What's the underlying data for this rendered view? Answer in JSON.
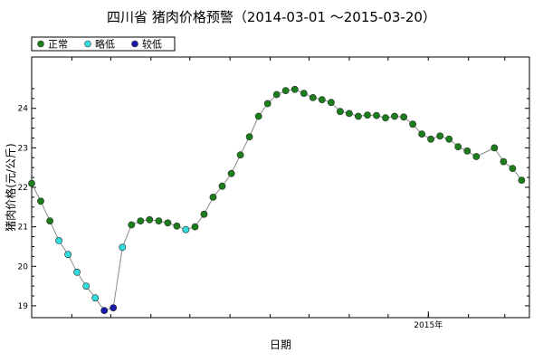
{
  "chart_data": {
    "type": "scatter",
    "title": "四川省 猪肉价格预警（2014-03-01 ～2015-03-20）",
    "xlabel": "日期",
    "ylabel": "猪肉价格(元/公斤)",
    "ylim": [
      18.7,
      25.3
    ],
    "yticks": [
      "19",
      "20",
      "21",
      "22",
      "23",
      "24"
    ],
    "xtick_labels": [
      {
        "label": "2015年",
        "date": "2015-01-01"
      }
    ],
    "xlim": [
      "2014-03-01",
      "2015-03-20"
    ],
    "legend": {
      "placement": "top-left",
      "entries": [
        {
          "name": "正常",
          "color": "#1a7f1a"
        },
        {
          "name": "略低",
          "color": "#33dddd"
        },
        {
          "name": "较低",
          "color": "#1a1aa8"
        }
      ]
    },
    "grid": false,
    "line_color": "#8a8a8a",
    "points": [
      {
        "x": "2014-03-01",
        "y": 22.1,
        "level": "正常"
      },
      {
        "x": "2014-03-08",
        "y": 21.65,
        "level": "正常"
      },
      {
        "x": "2014-03-15",
        "y": 21.15,
        "level": "正常"
      },
      {
        "x": "2014-03-22",
        "y": 20.65,
        "level": "略低"
      },
      {
        "x": "2014-03-29",
        "y": 20.3,
        "level": "略低"
      },
      {
        "x": "2014-04-05",
        "y": 19.85,
        "level": "略低"
      },
      {
        "x": "2014-04-12",
        "y": 19.5,
        "level": "略低"
      },
      {
        "x": "2014-04-19",
        "y": 19.2,
        "level": "略低"
      },
      {
        "x": "2014-04-26",
        "y": 18.88,
        "level": "较低"
      },
      {
        "x": "2014-05-03",
        "y": 18.95,
        "level": "较低"
      },
      {
        "x": "2014-05-10",
        "y": 20.48,
        "level": "略低"
      },
      {
        "x": "2014-05-17",
        "y": 21.05,
        "level": "正常"
      },
      {
        "x": "2014-05-24",
        "y": 21.15,
        "level": "正常"
      },
      {
        "x": "2014-05-31",
        "y": 21.18,
        "level": "正常"
      },
      {
        "x": "2014-06-07",
        "y": 21.15,
        "level": "正常"
      },
      {
        "x": "2014-06-14",
        "y": 21.1,
        "level": "正常"
      },
      {
        "x": "2014-06-21",
        "y": 21.02,
        "level": "正常"
      },
      {
        "x": "2014-06-28",
        "y": 20.93,
        "level": "略低"
      },
      {
        "x": "2014-07-05",
        "y": 21.0,
        "level": "正常"
      },
      {
        "x": "2014-07-12",
        "y": 21.32,
        "level": "正常"
      },
      {
        "x": "2014-07-19",
        "y": 21.75,
        "level": "正常"
      },
      {
        "x": "2014-07-26",
        "y": 22.03,
        "level": "正常"
      },
      {
        "x": "2014-08-02",
        "y": 22.35,
        "level": "正常"
      },
      {
        "x": "2014-08-09",
        "y": 22.82,
        "level": "正常"
      },
      {
        "x": "2014-08-16",
        "y": 23.28,
        "level": "正常"
      },
      {
        "x": "2014-08-23",
        "y": 23.8,
        "level": "正常"
      },
      {
        "x": "2014-08-30",
        "y": 24.12,
        "level": "正常"
      },
      {
        "x": "2014-09-06",
        "y": 24.35,
        "level": "正常"
      },
      {
        "x": "2014-09-13",
        "y": 24.45,
        "level": "正常"
      },
      {
        "x": "2014-09-20",
        "y": 24.48,
        "level": "正常"
      },
      {
        "x": "2014-09-27",
        "y": 24.38,
        "level": "正常"
      },
      {
        "x": "2014-10-04",
        "y": 24.27,
        "level": "正常"
      },
      {
        "x": "2014-10-11",
        "y": 24.22,
        "level": "正常"
      },
      {
        "x": "2014-10-18",
        "y": 24.15,
        "level": "正常"
      },
      {
        "x": "2014-10-25",
        "y": 23.92,
        "level": "正常"
      },
      {
        "x": "2014-11-01",
        "y": 23.87,
        "level": "正常"
      },
      {
        "x": "2014-11-08",
        "y": 23.8,
        "level": "正常"
      },
      {
        "x": "2014-11-15",
        "y": 23.83,
        "level": "正常"
      },
      {
        "x": "2014-11-22",
        "y": 23.82,
        "level": "正常"
      },
      {
        "x": "2014-11-29",
        "y": 23.76,
        "level": "正常"
      },
      {
        "x": "2014-12-06",
        "y": 23.8,
        "level": "正常"
      },
      {
        "x": "2014-12-13",
        "y": 23.78,
        "level": "正常"
      },
      {
        "x": "2014-12-20",
        "y": 23.6,
        "level": "正常"
      },
      {
        "x": "2014-12-27",
        "y": 23.35,
        "level": "正常"
      },
      {
        "x": "2015-01-03",
        "y": 23.22,
        "level": "正常"
      },
      {
        "x": "2015-01-10",
        "y": 23.3,
        "level": "正常"
      },
      {
        "x": "2015-01-17",
        "y": 23.22,
        "level": "正常"
      },
      {
        "x": "2015-01-24",
        "y": 23.03,
        "level": "正常"
      },
      {
        "x": "2015-01-31",
        "y": 22.92,
        "level": "正常"
      },
      {
        "x": "2015-02-07",
        "y": 22.78,
        "level": "正常"
      },
      {
        "x": "2015-02-21",
        "y": 23.0,
        "level": "正常"
      },
      {
        "x": "2015-02-28",
        "y": 22.65,
        "level": "正常"
      },
      {
        "x": "2015-03-07",
        "y": 22.48,
        "level": "正常"
      },
      {
        "x": "2015-03-14",
        "y": 22.18,
        "level": "正常"
      }
    ]
  }
}
